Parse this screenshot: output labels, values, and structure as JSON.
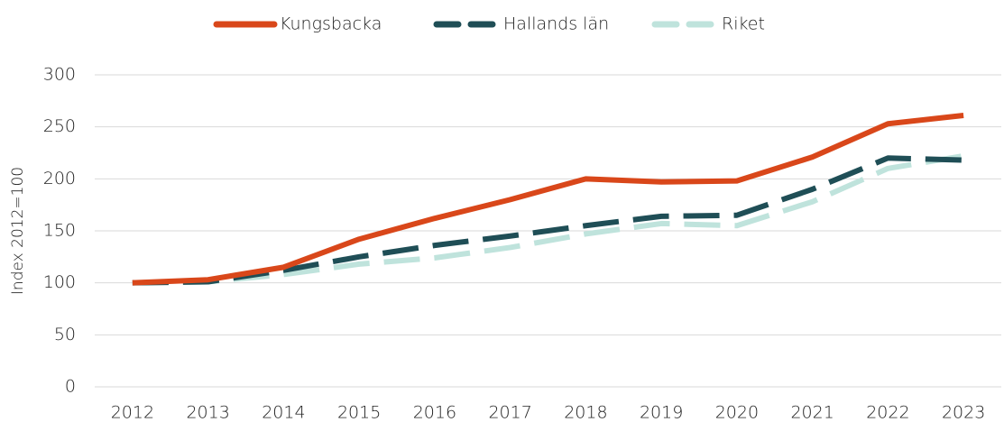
{
  "chart_data": {
    "type": "line",
    "ylabel": "Index 2012=100",
    "categories": [
      "2012",
      "2013",
      "2014",
      "2015",
      "2016",
      "2017",
      "2018",
      "2019",
      "2020",
      "2021",
      "2022",
      "2023"
    ],
    "series": [
      {
        "name": "Kungsbacka",
        "color": "#d9471a",
        "dashed": false,
        "values": [
          100,
          103,
          115,
          142,
          162,
          180,
          200,
          197,
          198,
          221,
          253,
          261
        ]
      },
      {
        "name": "Hallands län",
        "color": "#1f4e56",
        "dashed": true,
        "values": [
          100,
          101,
          112,
          125,
          136,
          145,
          155,
          164,
          165,
          190,
          220,
          218
        ]
      },
      {
        "name": "Riket",
        "color": "#bfe3dc",
        "dashed": true,
        "values": [
          100,
          101,
          108,
          118,
          124,
          134,
          147,
          157,
          155,
          178,
          210,
          222
        ]
      }
    ],
    "ylim": [
      0,
      300
    ],
    "yticks": [
      0,
      50,
      100,
      150,
      200,
      250,
      300
    ],
    "grid": true,
    "legend": "top"
  }
}
